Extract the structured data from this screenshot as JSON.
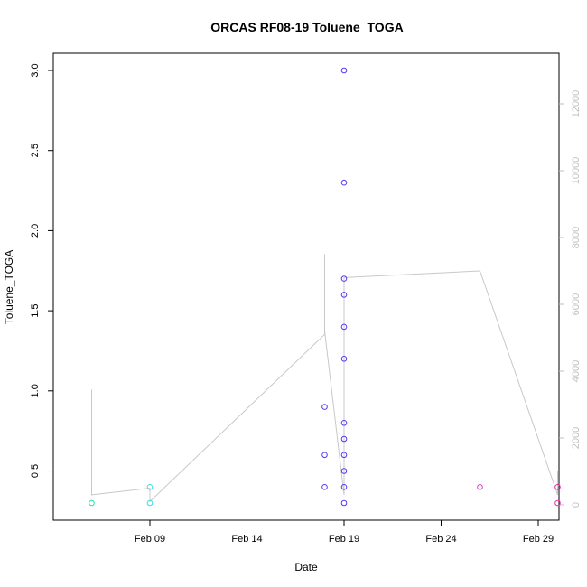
{
  "chart_data": {
    "type": "scatter",
    "title": "ORCAS RF08-19 Toluene_TOGA",
    "xlabel": "Date",
    "ylabel": "Toluene_TOGA",
    "x_ticks": [
      "Feb 09",
      "Feb 14",
      "Feb 19",
      "Feb 24",
      "Feb 29"
    ],
    "y_ticks": [
      "0.5",
      "1.0",
      "1.5",
      "2.0",
      "2.5",
      "3.0"
    ],
    "y_right_ticks": [
      "0",
      "2000",
      "4000",
      "6000",
      "8000",
      "10000",
      "12000"
    ],
    "x_domain": [
      "2016-02-05",
      "2016-03-01"
    ],
    "ylim": [
      0.3,
      3.0
    ],
    "y_right_lim": [
      0,
      12000
    ],
    "points": [
      {
        "x": "2016-02-06",
        "y": 0.3,
        "color": "#22e6a0"
      },
      {
        "x": "2016-02-09",
        "y": 0.4,
        "color": "#3ae0e0"
      },
      {
        "x": "2016-02-09",
        "y": 0.3,
        "color": "#3ae0e0"
      },
      {
        "x": "2016-02-18",
        "y": 0.9,
        "color": "#5a38f0"
      },
      {
        "x": "2016-02-18",
        "y": 0.6,
        "color": "#5a38f0"
      },
      {
        "x": "2016-02-18",
        "y": 0.4,
        "color": "#5a38f0"
      },
      {
        "x": "2016-02-19",
        "y": 3.0,
        "color": "#5a38f0"
      },
      {
        "x": "2016-02-19",
        "y": 2.3,
        "color": "#5a38f0"
      },
      {
        "x": "2016-02-19",
        "y": 1.7,
        "color": "#5a38f0"
      },
      {
        "x": "2016-02-19",
        "y": 1.6,
        "color": "#5a38f0"
      },
      {
        "x": "2016-02-19",
        "y": 1.4,
        "color": "#5a38f0"
      },
      {
        "x": "2016-02-19",
        "y": 1.2,
        "color": "#5a38f0"
      },
      {
        "x": "2016-02-19",
        "y": 0.8,
        "color": "#5a38f0"
      },
      {
        "x": "2016-02-19",
        "y": 0.7,
        "color": "#5a38f0"
      },
      {
        "x": "2016-02-19",
        "y": 0.6,
        "color": "#5a38f0"
      },
      {
        "x": "2016-02-19",
        "y": 0.5,
        "color": "#5a38f0"
      },
      {
        "x": "2016-02-19",
        "y": 0.4,
        "color": "#5a38f0"
      },
      {
        "x": "2016-02-19",
        "y": 0.3,
        "color": "#5a38f0"
      },
      {
        "x": "2016-02-26",
        "y": 0.4,
        "color": "#d040c8"
      },
      {
        "x": "2016-03-01",
        "y": 0.4,
        "color": "#e830a8"
      },
      {
        "x": "2016-03-01",
        "y": 0.3,
        "color": "#e830a8"
      }
    ],
    "altitude_line": {
      "color": "#c8c8c8",
      "points": [
        {
          "x": "2016-02-06",
          "y": 3450
        },
        {
          "x": "2016-02-06",
          "y": 300
        },
        {
          "x": "2016-02-09",
          "y": 500
        },
        {
          "x": "2016-02-09",
          "y": 100
        },
        {
          "x": "2016-02-18",
          "y": 5100
        },
        {
          "x": "2016-02-18",
          "y": 7500
        },
        {
          "x": "2016-02-18",
          "y": 5200
        },
        {
          "x": "2016-02-19",
          "y": 300
        },
        {
          "x": "2016-02-19",
          "y": 6800
        },
        {
          "x": "2016-02-26",
          "y": 7000
        },
        {
          "x": "2016-03-01",
          "y": 300
        },
        {
          "x": "2016-03-01",
          "y": 1000
        }
      ]
    }
  }
}
